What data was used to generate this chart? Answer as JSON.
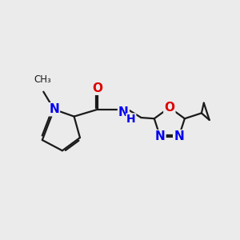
{
  "background_color": "#ebebeb",
  "bond_color": "#1a1a1a",
  "atom_colors": {
    "N": "#0000ee",
    "O": "#dd0000",
    "C": "#1a1a1a"
  },
  "lw": 1.6,
  "fs": 11
}
